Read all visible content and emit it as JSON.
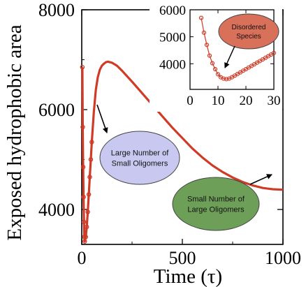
{
  "chart_data": [
    {
      "type": "scatter",
      "role": "main",
      "xlabel": "Time (τ)",
      "ylabel": "Exposed hydrophobic area",
      "xlim": [
        0,
        1000
      ],
      "ylim": [
        3300,
        8000
      ],
      "x_ticks": [
        {
          "value": 0,
          "label": "0"
        },
        {
          "value": 500,
          "label": "500"
        },
        {
          "value": 1000,
          "label": "1000"
        }
      ],
      "y_ticks": [
        {
          "value": 4000,
          "label": "4000"
        },
        {
          "value": 6000,
          "label": "6000"
        },
        {
          "value": 8000,
          "label": "8000"
        }
      ],
      "grid": false,
      "series_color": "#cf3b27",
      "series": [
        {
          "points": [
            [
              3,
              6850
            ],
            [
              5,
              5650
            ],
            [
              7,
              4850
            ],
            [
              9,
              4250
            ],
            [
              11,
              3750
            ],
            [
              13,
              3450
            ],
            [
              15,
              3360
            ],
            [
              20,
              3450
            ],
            [
              25,
              3650
            ],
            [
              30,
              3950
            ],
            [
              35,
              4300
            ],
            [
              40,
              4650
            ],
            [
              45,
              5000
            ],
            [
              50,
              5350
            ],
            [
              60,
              5950
            ],
            [
              70,
              6400
            ],
            [
              80,
              6650
            ],
            [
              90,
              6800
            ],
            [
              100,
              6880
            ],
            [
              110,
              6920
            ],
            [
              120,
              6950
            ],
            [
              130,
              6960
            ],
            [
              140,
              6950
            ],
            [
              150,
              6940
            ],
            [
              175,
              6880
            ],
            [
              200,
              6780
            ],
            [
              250,
              6560
            ],
            [
              300,
              6330
            ],
            [
              350,
              6100
            ],
            [
              400,
              5870
            ],
            [
              450,
              5640
            ],
            [
              500,
              5430
            ],
            [
              550,
              5220
            ],
            [
              600,
              5040
            ],
            [
              650,
              4880
            ],
            [
              700,
              4750
            ],
            [
              750,
              4640
            ],
            [
              800,
              4550
            ],
            [
              850,
              4480
            ],
            [
              900,
              4430
            ],
            [
              950,
              4405
            ],
            [
              1000,
              4395
            ]
          ]
        }
      ],
      "annotations": [
        {
          "text": "Large Number of\nSmall  Oligomers",
          "fill": "#c9c8f0"
        },
        {
          "text": "Small Number of\nLarge Oligomers",
          "fill": "#6e9f58"
        }
      ]
    },
    {
      "type": "scatter",
      "role": "inset",
      "xlim": [
        0,
        30
      ],
      "ylim": [
        3050,
        6000
      ],
      "x_ticks": [
        {
          "value": 0,
          "label": "0"
        },
        {
          "value": 10,
          "label": "10"
        },
        {
          "value": 20,
          "label": "20"
        },
        {
          "value": 30,
          "label": "30"
        }
      ],
      "y_ticks": [
        {
          "value": 4000,
          "label": "4000"
        },
        {
          "value": 5000,
          "label": "5000"
        },
        {
          "value": 6000,
          "label": "6000"
        }
      ],
      "series_color": "#cf3b27",
      "series": [
        {
          "points": [
            [
              4,
              5700
            ],
            [
              5,
              5150
            ],
            [
              6,
              4700
            ],
            [
              7,
              4300
            ],
            [
              8,
              4020
            ],
            [
              9,
              3800
            ],
            [
              10,
              3610
            ],
            [
              11,
              3500
            ],
            [
              12,
              3450
            ],
            [
              13,
              3430
            ],
            [
              14,
              3450
            ],
            [
              15,
              3500
            ],
            [
              16,
              3560
            ],
            [
              17,
              3620
            ],
            [
              18,
              3680
            ],
            [
              19,
              3740
            ],
            [
              20,
              3800
            ],
            [
              21,
              3860
            ],
            [
              22,
              3920
            ],
            [
              23,
              3980
            ],
            [
              24,
              4040
            ],
            [
              25,
              4100
            ],
            [
              26,
              4160
            ],
            [
              27,
              4220
            ],
            [
              28,
              4280
            ],
            [
              29,
              4340
            ],
            [
              30,
              4400
            ]
          ]
        }
      ],
      "annotations": [
        {
          "text": "Disordered\nSpecies",
          "fill": "#d9705a"
        }
      ]
    }
  ]
}
